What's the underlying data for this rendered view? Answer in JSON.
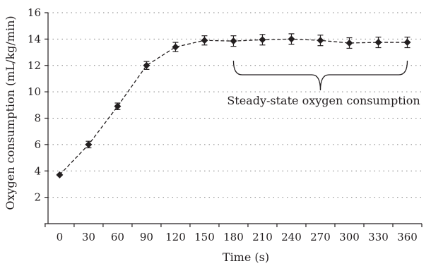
{
  "chart_data": {
    "type": "line",
    "title": "",
    "xlabel": "Time (s)",
    "ylabel": "Oxygen consumption (mL/kg/min)",
    "xlim": [
      -12,
      375
    ],
    "ylim": [
      0,
      16
    ],
    "xticks": [
      0,
      30,
      60,
      90,
      120,
      150,
      180,
      210,
      240,
      270,
      300,
      330,
      360
    ],
    "yticks": [
      0,
      2,
      4,
      6,
      8,
      10,
      12,
      14,
      16
    ],
    "x_tick_labels": [
      "0",
      "30",
      "60",
      "90",
      "120",
      "150",
      "180",
      "210",
      "240",
      "270",
      "300",
      "330",
      "360"
    ],
    "y_tick_labels": [
      "",
      "2",
      "4",
      "6",
      "8",
      "10",
      "12",
      "14",
      "16"
    ],
    "grid": "horizontal dotted",
    "line_style": "dashed",
    "marker": "diamond",
    "color": "#231f20",
    "series": [
      {
        "x": [
          0,
          30,
          60,
          90,
          120,
          150,
          180,
          210,
          240,
          270,
          300,
          330,
          360
        ],
        "y": [
          3.7,
          6.0,
          8.9,
          12.0,
          13.4,
          13.9,
          13.85,
          13.95,
          14.0,
          13.9,
          13.7,
          13.75,
          13.75
        ],
        "error": [
          0,
          0.25,
          0.25,
          0.3,
          0.35,
          0.35,
          0.4,
          0.4,
          0.4,
          0.4,
          0.4,
          0.4,
          0.4
        ]
      }
    ],
    "annotations": [
      {
        "text": "Steady-state oxygen consumption",
        "bracket_x": [
          180,
          360
        ]
      }
    ]
  }
}
